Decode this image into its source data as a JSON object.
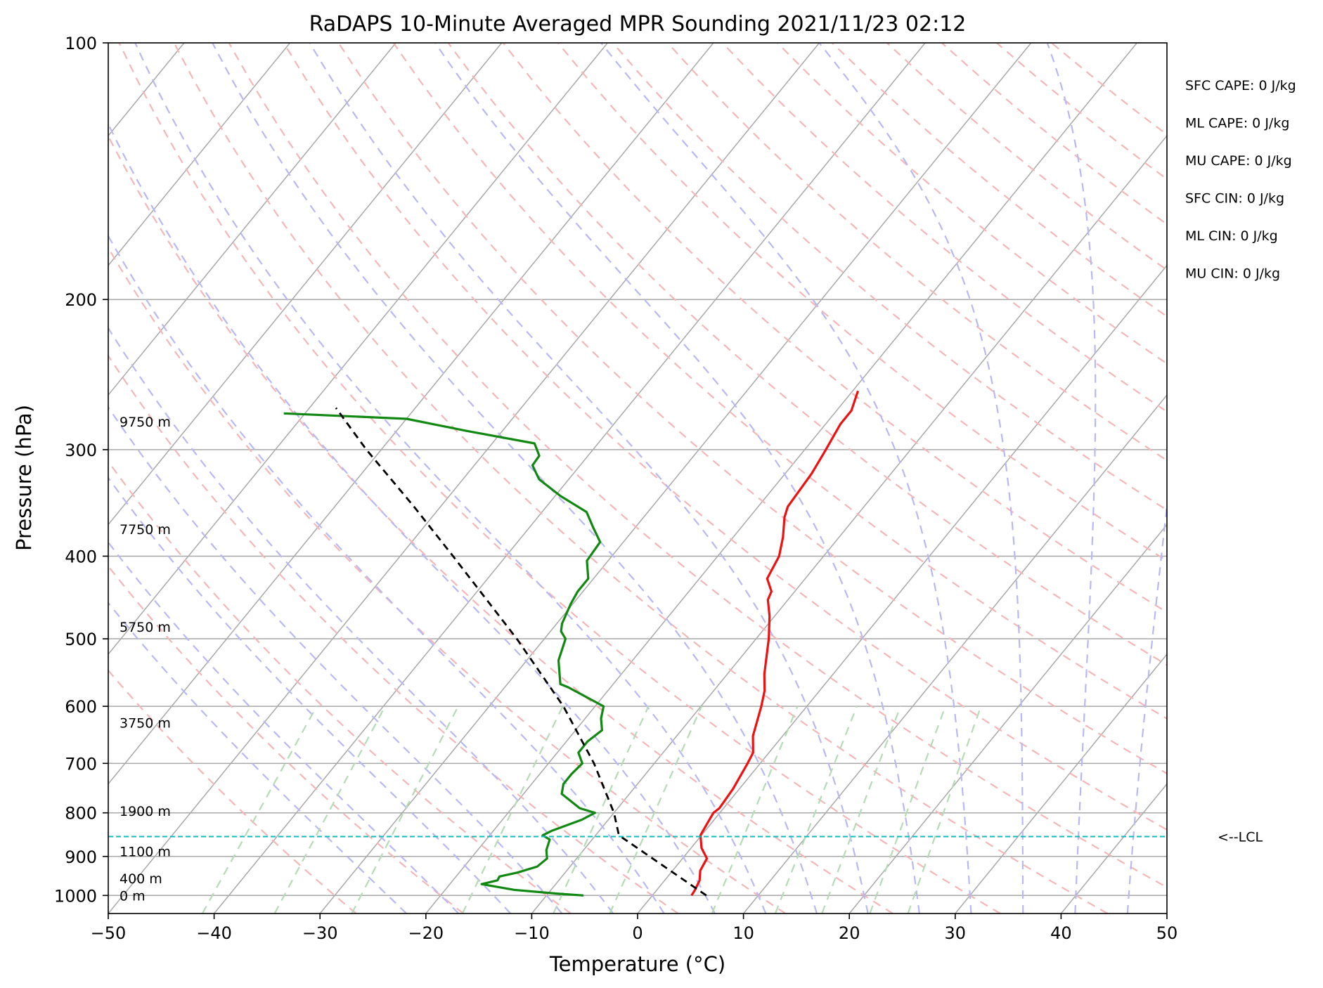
{
  "chart_data": {
    "type": "line",
    "title": "RaDAPS 10-Minute Averaged MPR Sounding 2021/11/23 02:12",
    "xlabel": "Temperature (°C)",
    "ylabel": "Pressure (hPa)",
    "xlim": [
      -50,
      50
    ],
    "ylim": [
      1050,
      100
    ],
    "y_scale": "log",
    "x_ticks": [
      "−50",
      "−40",
      "−30",
      "−20",
      "−10",
      "0",
      "10",
      "20",
      "30",
      "40",
      "50"
    ],
    "y_ticks": [
      "100",
      "200",
      "300",
      "400",
      "500",
      "600",
      "700",
      "800",
      "900",
      "1000"
    ],
    "grid": true,
    "skew": "skew-T log-P",
    "background_lines": {
      "isotherms_color": "#a8a8a8",
      "dry_adiabats_color": "#f4b6b6",
      "moist_adiabats_color": "#b8b8f4",
      "mixing_ratio_color": "#b4dcb4"
    },
    "series": [
      {
        "key": "temperature",
        "color": "#ee1111",
        "points": [
          {
            "p": 1000,
            "t": 3.7
          },
          {
            "p": 985,
            "t": 3.6
          },
          {
            "p": 960,
            "t": 3.3
          },
          {
            "p": 935,
            "t": 2.6
          },
          {
            "p": 905,
            "t": 2.3
          },
          {
            "p": 880,
            "t": 1.0
          },
          {
            "p": 850,
            "t": -0.1
          },
          {
            "p": 830,
            "t": -0.3
          },
          {
            "p": 800,
            "t": -0.6
          },
          {
            "p": 790,
            "t": -0.4
          },
          {
            "p": 750,
            "t": -0.6
          },
          {
            "p": 700,
            "t": -1.2
          },
          {
            "p": 680,
            "t": -1.5
          },
          {
            "p": 650,
            "t": -2.8
          },
          {
            "p": 600,
            "t": -4.3
          },
          {
            "p": 575,
            "t": -5.2
          },
          {
            "p": 550,
            "t": -6.5
          },
          {
            "p": 500,
            "t": -8.8
          },
          {
            "p": 470,
            "t": -10.5
          },
          {
            "p": 450,
            "t": -11.9
          },
          {
            "p": 440,
            "t": -12.2
          },
          {
            "p": 425,
            "t": -13.6
          },
          {
            "p": 400,
            "t": -14.2
          },
          {
            "p": 380,
            "t": -15.3
          },
          {
            "p": 360,
            "t": -16.7
          },
          {
            "p": 350,
            "t": -17.2
          },
          {
            "p": 320,
            "t": -17.5
          },
          {
            "p": 300,
            "t": -18.0
          },
          {
            "p": 280,
            "t": -18.6
          },
          {
            "p": 270,
            "t": -18.6
          },
          {
            "p": 256,
            "t": -19.5
          }
        ]
      },
      {
        "key": "dewpoint",
        "color": "#118811",
        "points": [
          {
            "p": 1000,
            "t": -6.5
          },
          {
            "p": 995,
            "t": -9.2
          },
          {
            "p": 985,
            "t": -13.5
          },
          {
            "p": 970,
            "t": -17.0
          },
          {
            "p": 960,
            "t": -15.8
          },
          {
            "p": 950,
            "t": -15.9
          },
          {
            "p": 940,
            "t": -14.5
          },
          {
            "p": 925,
            "t": -13.1
          },
          {
            "p": 905,
            "t": -12.8
          },
          {
            "p": 885,
            "t": -13.5
          },
          {
            "p": 860,
            "t": -14.0
          },
          {
            "p": 850,
            "t": -15.0
          },
          {
            "p": 840,
            "t": -14.5
          },
          {
            "p": 815,
            "t": -12.5
          },
          {
            "p": 800,
            "t": -11.8
          },
          {
            "p": 790,
            "t": -13.6
          },
          {
            "p": 760,
            "t": -16.4
          },
          {
            "p": 740,
            "t": -17.0
          },
          {
            "p": 720,
            "t": -17.0
          },
          {
            "p": 700,
            "t": -16.8
          },
          {
            "p": 680,
            "t": -18.0
          },
          {
            "p": 660,
            "t": -18.0
          },
          {
            "p": 640,
            "t": -17.5
          },
          {
            "p": 620,
            "t": -18.5
          },
          {
            "p": 600,
            "t": -19.2
          },
          {
            "p": 570,
            "t": -24.0
          },
          {
            "p": 565,
            "t": -25.0
          },
          {
            "p": 530,
            "t": -27.0
          },
          {
            "p": 500,
            "t": -28.0
          },
          {
            "p": 490,
            "t": -29.0
          },
          {
            "p": 480,
            "t": -29.5
          },
          {
            "p": 455,
            "t": -30.2
          },
          {
            "p": 440,
            "t": -30.5
          },
          {
            "p": 425,
            "t": -30.5
          },
          {
            "p": 405,
            "t": -32.0
          },
          {
            "p": 385,
            "t": -32.2
          },
          {
            "p": 370,
            "t": -34.0
          },
          {
            "p": 355,
            "t": -35.8
          },
          {
            "p": 340,
            "t": -39.5
          },
          {
            "p": 325,
            "t": -42.8
          },
          {
            "p": 313,
            "t": -44.5
          },
          {
            "p": 305,
            "t": -44.6
          },
          {
            "p": 295,
            "t": -46.0
          },
          {
            "p": 285,
            "t": -53.5
          },
          {
            "p": 276,
            "t": -60.0
          },
          {
            "p": 272,
            "t": -72.0
          }
        ]
      },
      {
        "key": "parcel",
        "color": "#000000",
        "style": "dashed",
        "points": [
          {
            "p": 1000,
            "t": 5.1
          },
          {
            "p": 850,
            "t": -7.8
          },
          {
            "p": 800,
            "t": -10.0
          },
          {
            "p": 700,
            "t": -15.7
          },
          {
            "p": 600,
            "t": -23.0
          },
          {
            "p": 500,
            "t": -32.6
          },
          {
            "p": 400,
            "t": -45.0
          },
          {
            "p": 350,
            "t": -52.5
          },
          {
            "p": 300,
            "t": -61.4
          },
          {
            "p": 268,
            "t": -67.5
          }
        ]
      }
    ],
    "lcl": {
      "pressure": 853,
      "label": "<--LCL",
      "color": "#11bbbb"
    },
    "height_labels": [
      {
        "p": 1000,
        "text": "0 m"
      },
      {
        "p": 955,
        "text": "400 m"
      },
      {
        "p": 888,
        "text": "1100 m"
      },
      {
        "p": 796,
        "text": "1900 m"
      },
      {
        "p": 627,
        "text": "3750 m"
      },
      {
        "p": 484,
        "text": "5750 m"
      },
      {
        "p": 372,
        "text": "7750 m"
      },
      {
        "p": 278,
        "text": "9750 m"
      }
    ],
    "annotations": [
      "SFC CAPE: 0 J/kg",
      "ML CAPE: 0 J/kg",
      "MU CAPE: 0 J/kg",
      "SFC CIN: 0 J/kg",
      "ML CIN: 0 J/kg",
      "MU CIN: 0 J/kg"
    ]
  }
}
